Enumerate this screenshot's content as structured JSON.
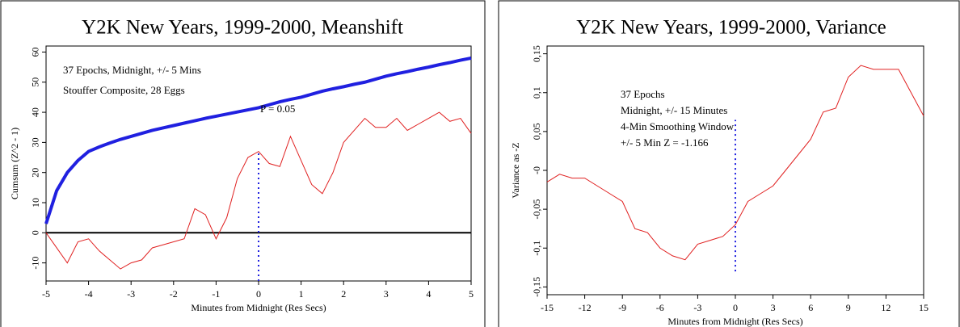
{
  "chart_data": [
    {
      "type": "line",
      "title": "Y2K New Years, 1999-2000, Meanshift",
      "xlabel": "Minutes from Midnight (Res Secs)",
      "ylabel": "Cumsum (Z^2 - 1)",
      "xlim": [
        -5,
        5
      ],
      "ylim": [
        -16,
        62
      ],
      "xticks": [
        -5,
        -4,
        -3,
        -2,
        -1,
        0,
        1,
        2,
        3,
        4,
        5
      ],
      "yticks": [
        -10,
        0,
        10,
        20,
        30,
        40,
        50,
        60
      ],
      "zero_line": true,
      "reference_line": {
        "x": 0,
        "from": -16,
        "to": 27,
        "color": "#2020e0"
      },
      "annotations": [
        {
          "text": "37 Epochs, Midnight, +/- 5 Mins",
          "color": "#e02020"
        },
        {
          "text": "Stouffer Composite, 28 Eggs",
          "color": "#e02020"
        },
        {
          "text": "P = 0.05",
          "color": "#2020e0"
        }
      ],
      "x": [
        -5,
        -4.75,
        -4.5,
        -4.25,
        -4,
        -3.75,
        -3.5,
        -3.25,
        -3,
        -2.75,
        -2.5,
        -2.25,
        -2,
        -1.75,
        -1.5,
        -1.25,
        -1,
        -0.75,
        -0.5,
        -0.25,
        0,
        0.25,
        0.5,
        0.75,
        1,
        1.25,
        1.5,
        1.75,
        2,
        2.25,
        2.5,
        2.75,
        3,
        3.25,
        3.5,
        3.75,
        4,
        4.25,
        4.5,
        4.75,
        5
      ],
      "series": [
        {
          "name": "P = 0.05",
          "color": "#2020e0",
          "width": 4,
          "values": [
            3,
            14,
            20,
            24,
            27,
            28.5,
            29.8,
            31,
            32,
            33,
            34,
            34.8,
            35.6,
            36.4,
            37.2,
            38,
            38.7,
            39.4,
            40.1,
            40.8,
            41.5,
            42.5,
            43.5,
            44.3,
            45,
            46,
            47,
            47.8,
            48.5,
            49.3,
            50,
            51,
            52,
            52.8,
            53.5,
            54.3,
            55,
            55.8,
            56.5,
            57.3,
            58
          ]
        },
        {
          "name": "Cumsum",
          "color": "#e02020",
          "width": 1,
          "values": [
            0,
            -5,
            -10,
            -3,
            -2,
            -6,
            -9,
            -12,
            -10,
            -9,
            -5,
            -4,
            -3,
            -2,
            8,
            6,
            -2,
            5,
            18,
            25,
            27,
            23,
            22,
            32,
            24,
            16,
            13,
            20,
            30,
            34,
            38,
            35,
            35,
            38,
            34,
            36,
            38,
            40,
            37,
            38,
            33
          ]
        }
      ]
    },
    {
      "type": "line",
      "title": "Y2K New Years, 1999-2000, Variance",
      "xlabel": "Minutes from Midnight (Res Secs)",
      "ylabel": "Variance as -Z",
      "xlim": [
        -15,
        15
      ],
      "ylim": [
        -0.16,
        0.16
      ],
      "xticks": [
        -15,
        -12,
        -9,
        -6,
        -3,
        0,
        3,
        6,
        9,
        12,
        15
      ],
      "yticks": [
        {
          "value": -0.15,
          "label": "-0,15"
        },
        {
          "value": -0.1,
          "label": "-0,1"
        },
        {
          "value": -0.05,
          "label": "-0,05"
        },
        {
          "value": 0,
          "label": "-0"
        },
        {
          "value": 0.05,
          "label": "0,05"
        },
        {
          "value": 0.1,
          "label": "0,1"
        },
        {
          "value": 0.15,
          "label": "0,15"
        }
      ],
      "zero_line": false,
      "reference_line": {
        "x": 0,
        "from": -0.13,
        "to": 0.065,
        "color": "#2020e0"
      },
      "annotations": [
        {
          "text": "37 Epochs",
          "color": "#e02020"
        },
        {
          "text": "Midnight, +/- 15 Minutes",
          "color": "#e02020"
        },
        {
          "text": "4-Min Smoothing Window",
          "color": "#e02020"
        },
        {
          "text": "+/- 5 Min Z = -1.166",
          "color": "#e02020"
        }
      ],
      "x": [
        -15,
        -14,
        -13,
        -12,
        -11,
        -10,
        -9,
        -8,
        -7,
        -6,
        -5,
        -4,
        -3,
        -2,
        -1,
        0,
        1,
        2,
        3,
        4,
        5,
        6,
        7,
        8,
        9,
        10,
        11,
        12,
        13,
        14,
        15
      ],
      "series": [
        {
          "name": "Variance",
          "color": "#e02020",
          "width": 1,
          "values": [
            -0.015,
            -0.005,
            -0.01,
            -0.01,
            -0.02,
            -0.03,
            -0.04,
            -0.075,
            -0.08,
            -0.1,
            -0.11,
            -0.115,
            -0.095,
            -0.09,
            -0.085,
            -0.07,
            -0.04,
            -0.03,
            -0.02,
            0,
            0.02,
            0.04,
            0.075,
            0.08,
            0.12,
            0.135,
            0.13,
            0.13,
            0.13,
            0.1,
            0.07
          ]
        }
      ]
    }
  ]
}
